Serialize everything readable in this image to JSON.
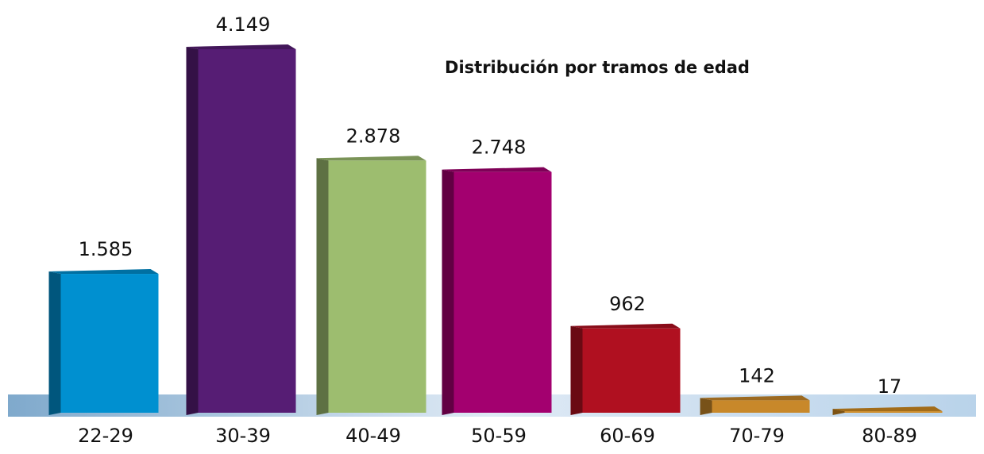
{
  "chart_data": {
    "type": "bar3d",
    "title": "Distribución por tramos de edad",
    "categories": [
      "22-29",
      "30-39",
      "40-49",
      "50-59",
      "60-69",
      "70-79",
      "80-89"
    ],
    "values": [
      1585,
      4149,
      2878,
      2748,
      962,
      142,
      17
    ],
    "value_labels": [
      "1.585",
      "4.149",
      "2.878",
      "2.748",
      "962",
      "142",
      "17"
    ],
    "colors": [
      "#0090d0",
      "#561d74",
      "#9dbd6f",
      "#a3006f",
      "#b01020",
      "#c8882a",
      "#d08a20"
    ]
  }
}
